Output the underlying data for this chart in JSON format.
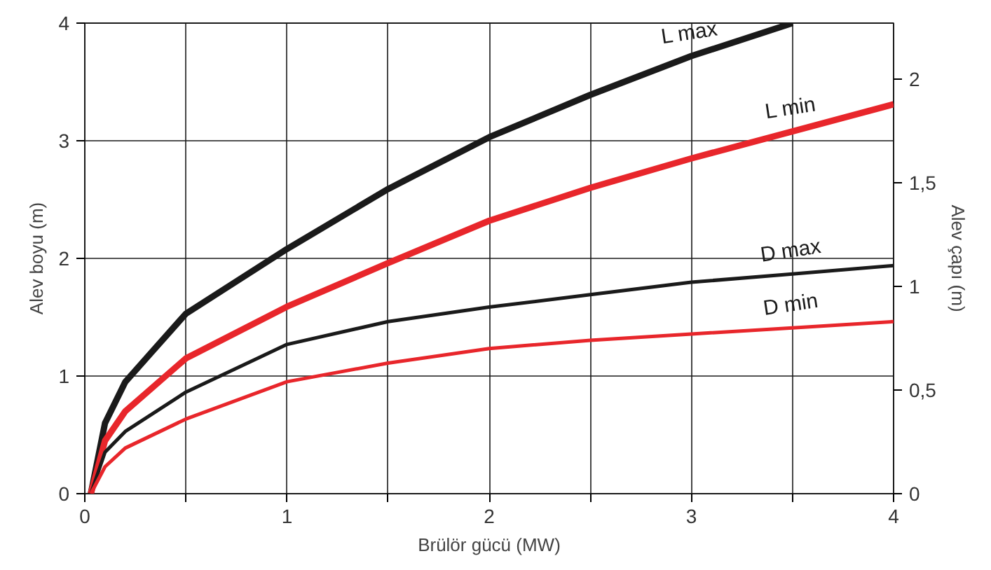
{
  "chart_data": {
    "type": "line",
    "xlabel": "Brülör gücü (MW)",
    "ylabel": "Alev boyu (m)",
    "y2label": "Alev çapı (m)",
    "xlim": [
      0,
      4
    ],
    "ylim": [
      0,
      4
    ],
    "y2lim": [
      0,
      2.27
    ],
    "xticks": [
      0,
      {
        "value": 0.5,
        "label": null
      },
      1,
      {
        "value": 1.5,
        "label": null
      },
      2,
      {
        "value": 2.5,
        "label": null
      },
      3,
      {
        "value": 3.5,
        "label": null
      },
      4
    ],
    "yticks": [
      0,
      1,
      2,
      3,
      4
    ],
    "y2ticks": [
      0,
      {
        "value": 0.5,
        "label": "0,5"
      },
      1,
      {
        "value": 1.5,
        "label": "1,5"
      },
      2
    ],
    "grid": true,
    "series": [
      {
        "name": "L max",
        "color": "#1a1a1a",
        "x": [
          0.03,
          0.1,
          0.2,
          0.5,
          1,
          1.5,
          2,
          2.5,
          3,
          3.5
        ],
        "values": [
          0,
          0.6,
          0.95,
          1.53,
          2.08,
          2.59,
          3.03,
          3.39,
          3.72,
          4.0
        ]
      },
      {
        "name": "L min",
        "color": "#e8262b",
        "x": [
          0.03,
          0.1,
          0.2,
          0.5,
          1,
          1.5,
          2,
          2.5,
          3,
          3.5,
          4
        ],
        "values": [
          0,
          0.45,
          0.7,
          1.15,
          1.59,
          1.96,
          2.32,
          2.6,
          2.85,
          3.08,
          3.31
        ]
      },
      {
        "name": "D max",
        "color": "#1a1a1a",
        "axis": "y2",
        "x": [
          0.03,
          0.1,
          0.2,
          0.5,
          1,
          1.5,
          2,
          2.5,
          3,
          3.5,
          4
        ],
        "values": [
          0,
          0.2,
          0.3,
          0.49,
          0.72,
          0.83,
          0.9,
          0.96,
          1.02,
          1.06,
          1.1
        ]
      },
      {
        "name": "D min",
        "color": "#e8262b",
        "axis": "y2",
        "x": [
          0.03,
          0.1,
          0.2,
          0.5,
          1,
          1.5,
          2,
          2.5,
          3,
          3.5,
          4
        ],
        "values": [
          0,
          0.13,
          0.22,
          0.36,
          0.54,
          0.63,
          0.7,
          0.74,
          0.77,
          0.8,
          0.83
        ]
      }
    ]
  }
}
